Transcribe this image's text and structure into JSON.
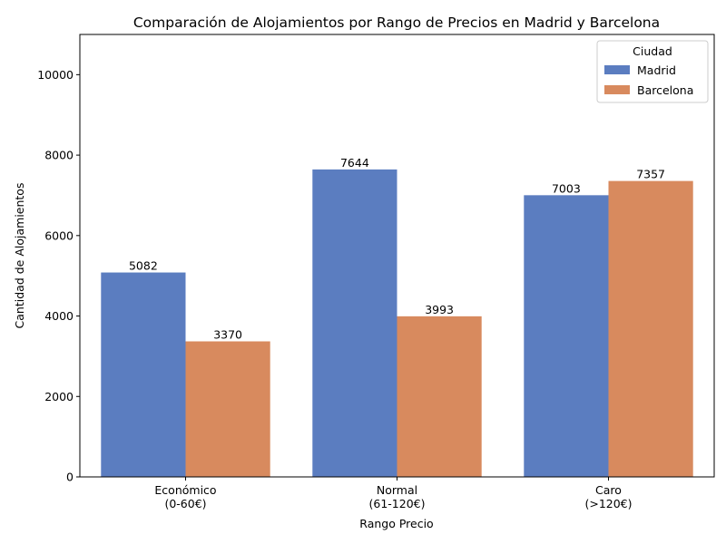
{
  "chart_data": {
    "type": "bar",
    "title": "Comparación de Alojamientos por Rango de Precios en Madrid y Barcelona",
    "xlabel": "Rango Precio",
    "ylabel": "Cantidad de Alojamientos",
    "categories": [
      [
        "Económico",
        "(0-60€)"
      ],
      [
        "Normal",
        "(61-120€)"
      ],
      [
        "Caro",
        "(>120€)"
      ]
    ],
    "series": [
      {
        "name": "Madrid",
        "color": "#5b7dc0",
        "values": [
          5082,
          7644,
          7003
        ]
      },
      {
        "name": "Barcelona",
        "color": "#d88a5e",
        "values": [
          3370,
          3993,
          7357
        ]
      }
    ],
    "ylim": [
      0,
      11000
    ],
    "yticks": [
      "0",
      "2000",
      "4000",
      "6000",
      "8000",
      "10000"
    ],
    "data_labels": true,
    "grid": false,
    "legend": {
      "title": "Ciudad",
      "position": "top-right"
    }
  }
}
